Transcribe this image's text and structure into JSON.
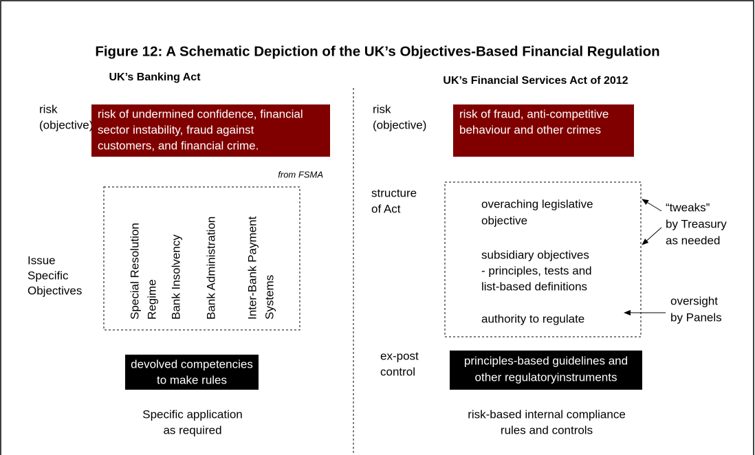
{
  "title": "Figure 12: A Schematic Depiction of the UK’s Objectives-Based Financial Regulation",
  "left": {
    "heading": "UK’s Banking Act",
    "risk_label": [
      "risk",
      "(objective)"
    ],
    "risk_text": [
      "risk of undermined confidence, financial",
      "sector instability, fraud against",
      "customers, and financial crime."
    ],
    "note": "from FSMA",
    "issue_label": [
      "Issue",
      "Specific",
      "Objectives"
    ],
    "objectives": [
      [
        "Special Resolution",
        "Regime"
      ],
      [
        "Bank Insolvency"
      ],
      [
        "Bank Administration"
      ],
      [
        "Inter-Bank Payment",
        "Systems"
      ]
    ],
    "rules_box": [
      "devolved competencies",
      "to make rules"
    ],
    "application": [
      "Specific application",
      "as required"
    ]
  },
  "right": {
    "heading": "UK’s Financial Services Act of 2012",
    "risk_label": [
      "risk",
      "(objective)"
    ],
    "risk_text": [
      "risk of fraud, anti-competitive",
      "behaviour and other crimes"
    ],
    "structure_label": [
      "structure",
      "of Act"
    ],
    "structure": [
      [
        "overaching legislative",
        "objective"
      ],
      [
        "subsidiary objectives",
        "- principles, tests and",
        "list-based definitions"
      ],
      [
        "authority to regulate"
      ]
    ],
    "tweaks": [
      "“tweaks”",
      "by Treasury",
      "as needed"
    ],
    "oversight": [
      "oversight",
      "by Panels"
    ],
    "control_label": [
      "ex-post",
      "control"
    ],
    "control_box": [
      "principles-based guidelines and",
      "other regulatoryinstruments"
    ],
    "compliance": [
      "risk-based internal compliance",
      "rules and controls"
    ]
  }
}
